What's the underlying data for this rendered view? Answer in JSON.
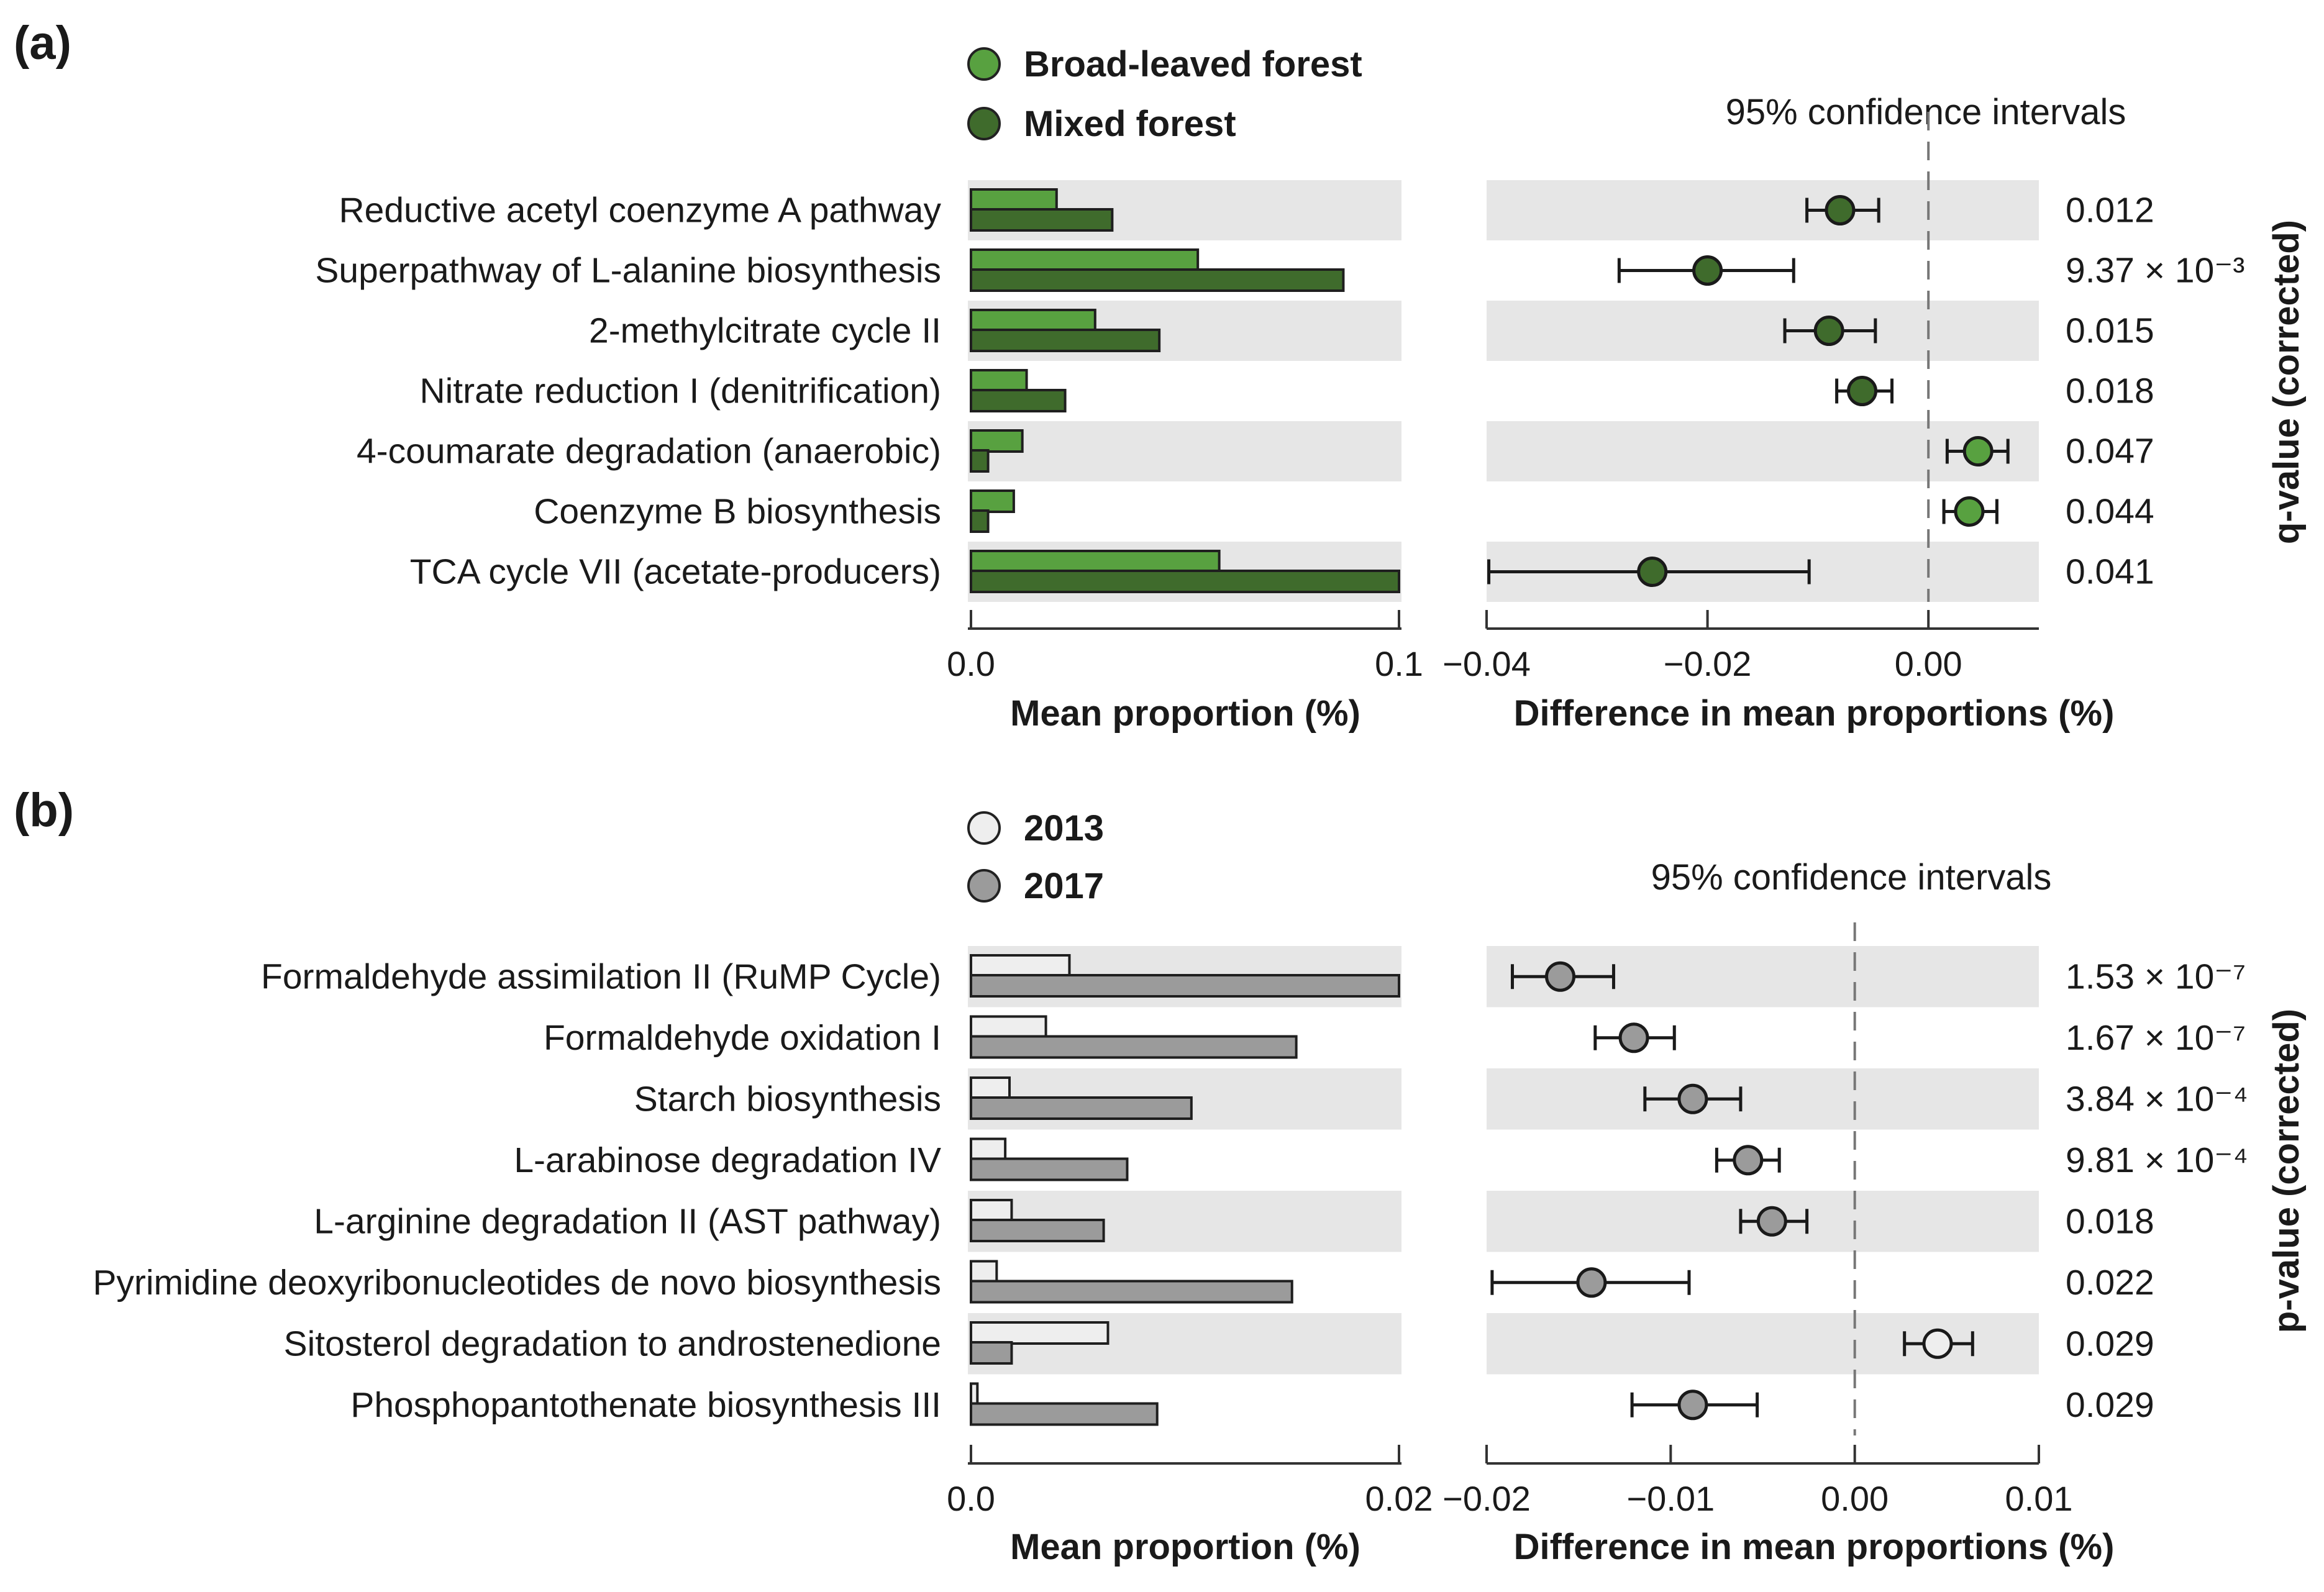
{
  "colors": {
    "stripe": "#e6e6e6",
    "axis": "#333333",
    "a_group1": "#58a140",
    "a_group2": "#3f6b2c",
    "b_group1": "#eeeeee",
    "b_group2": "#9b9b9b",
    "dashed": "#777777"
  },
  "chart_data": [
    {
      "type": "extended-error-bar",
      "panel_label": "(a)",
      "legend": [
        {
          "name": "Broad-leaved forest",
          "color_key": "a_group1"
        },
        {
          "name": "Mixed forest",
          "color_key": "a_group2"
        }
      ],
      "categories": [
        "Reductive acetyl coenzyme A pathway",
        "Superpathway of L-alanine biosynthesis",
        "2-methylcitrate cycle II",
        "Nitrate reduction I (denitrification)",
        "4-coumarate degradation (anaerobic)",
        "Coenzyme B biosynthesis",
        "TCA cycle VII (acetate-producers)"
      ],
      "mean_proportion": {
        "xlabel": "Mean proportion (%)",
        "xlim": [
          0,
          0.1
        ],
        "ticks": [
          0,
          0.1
        ],
        "tick_labels": [
          "0.0",
          "0.1"
        ],
        "series": [
          {
            "name": "Broad-leaved forest",
            "values": [
              0.02,
              0.053,
              0.029,
              0.013,
              0.012,
              0.01,
              0.058
            ]
          },
          {
            "name": "Mixed forest",
            "values": [
              0.033,
              0.087,
              0.044,
              0.022,
              0.004,
              0.004,
              0.1
            ]
          }
        ]
      },
      "difference": {
        "title": "95% confidence intervals",
        "xlabel": "Difference in mean proportions (%)",
        "xlim": [
          -0.04,
          0.01
        ],
        "ticks": [
          -0.04,
          -0.02,
          0.0
        ],
        "tick_labels": [
          "−0.04",
          "−0.02",
          "0.00"
        ],
        "points": [
          {
            "value": -0.008,
            "ci": [
              -0.011,
              -0.0045
            ],
            "color_key": "a_group2"
          },
          {
            "value": -0.02,
            "ci": [
              -0.028,
              -0.0122
            ],
            "color_key": "a_group2"
          },
          {
            "value": -0.009,
            "ci": [
              -0.013,
              -0.0048
            ],
            "color_key": "a_group2"
          },
          {
            "value": -0.006,
            "ci": [
              -0.0083,
              -0.0033
            ],
            "color_key": "a_group2"
          },
          {
            "value": 0.0045,
            "ci": [
              0.0017,
              0.0072
            ],
            "color_key": "a_group1"
          },
          {
            "value": 0.0037,
            "ci": [
              0.0014,
              0.0062
            ],
            "color_key": "a_group1"
          },
          {
            "value": -0.025,
            "ci": [
              -0.0398,
              -0.0108
            ],
            "color_key": "a_group2"
          }
        ]
      },
      "pvalues": [
        "0.012",
        "9.37 × 10⁻³",
        "0.015",
        "0.018",
        "0.047",
        "0.044",
        "0.041"
      ],
      "side_title": "q-value (corrected)"
    },
    {
      "type": "extended-error-bar",
      "panel_label": "(b)",
      "legend": [
        {
          "name": "2013",
          "color_key": "b_group1"
        },
        {
          "name": "2017",
          "color_key": "b_group2"
        }
      ],
      "categories": [
        "Formaldehyde assimilation II (RuMP Cycle)",
        "Formaldehyde oxidation I",
        "Starch biosynthesis",
        "L-arabinose degradation IV",
        "L-arginine degradation II (AST pathway)",
        "Pyrimidine deoxyribonucleotides de novo biosynthesis",
        "Sitosterol degradation to androstenedione",
        "Phosphopantothenate biosynthesis III"
      ],
      "mean_proportion": {
        "xlabel": "Mean proportion (%)",
        "xlim": [
          0,
          0.02
        ],
        "ticks": [
          0,
          0.02
        ],
        "tick_labels": [
          "0.0",
          "0.02"
        ],
        "series": [
          {
            "name": "2013",
            "values": [
              0.0046,
              0.0035,
              0.0018,
              0.0016,
              0.0019,
              0.0012,
              0.0064,
              0.0003
            ]
          },
          {
            "name": "2017",
            "values": [
              0.02,
              0.0152,
              0.0103,
              0.0073,
              0.0062,
              0.015,
              0.0019,
              0.0087
            ]
          }
        ]
      },
      "difference": {
        "title": "95% confidence intervals",
        "xlabel": "Difference in mean proportions (%)",
        "xlim": [
          -0.02,
          0.01
        ],
        "ticks": [
          -0.02,
          -0.01,
          0.0,
          0.01
        ],
        "tick_labels": [
          "−0.02",
          "−0.01",
          "0.00",
          "0.01"
        ],
        "points": [
          {
            "value": -0.016,
            "ci": [
              -0.0186,
              -0.0131
            ],
            "color_key": "b_group2"
          },
          {
            "value": -0.012,
            "ci": [
              -0.0141,
              -0.0098
            ],
            "color_key": "b_group2"
          },
          {
            "value": -0.0088,
            "ci": [
              -0.0114,
              -0.0062
            ],
            "color_key": "b_group2"
          },
          {
            "value": -0.0058,
            "ci": [
              -0.0075,
              -0.0041
            ],
            "color_key": "b_group2"
          },
          {
            "value": -0.0045,
            "ci": [
              -0.0062,
              -0.0026
            ],
            "color_key": "b_group2"
          },
          {
            "value": -0.0143,
            "ci": [
              -0.0197,
              -0.009
            ],
            "color_key": "b_group2"
          },
          {
            "value": 0.0045,
            "ci": [
              0.0027,
              0.0064
            ],
            "color_key": "b_group1"
          },
          {
            "value": -0.0088,
            "ci": [
              -0.0121,
              -0.0053
            ],
            "color_key": "b_group2"
          }
        ]
      },
      "pvalues": [
        "1.53 × 10⁻⁷",
        "1.67 × 10⁻⁷",
        "3.84 × 10⁻⁴",
        "9.81 × 10⁻⁴",
        "0.018",
        "0.022",
        "0.029",
        "0.029"
      ],
      "side_title": "p-value (corrected)"
    }
  ]
}
